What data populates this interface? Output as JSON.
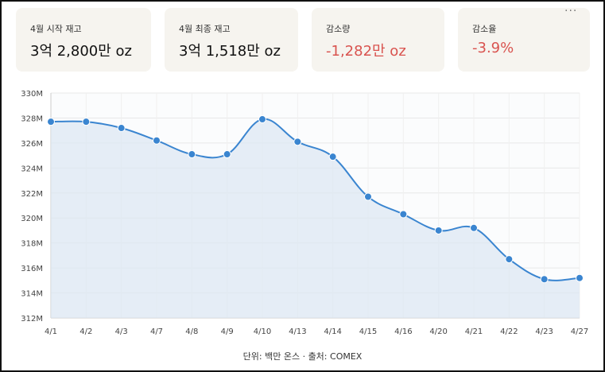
{
  "cards": [
    {
      "label": "4월 시작 재고",
      "value": "3억 2,800만 oz",
      "negative": false
    },
    {
      "label": "4월 최종 재고",
      "value": "3억 1,518만 oz",
      "negative": false
    },
    {
      "label": "감소량",
      "value": "-1,282만 oz",
      "negative": true
    },
    {
      "label": "감소율",
      "value": "-3.9%",
      "negative": true
    }
  ],
  "more_label": "···",
  "footer": "단위: 백만 온스 · 출처: COMEX",
  "colors": {
    "line": "#3a85d0",
    "fill": "#dbe7f2",
    "negative": "#d9534f",
    "card_bg": "#f6f4ef"
  },
  "chart_data": {
    "type": "area",
    "categories": [
      "4/1",
      "4/2",
      "4/3",
      "4/7",
      "4/8",
      "4/9",
      "4/10",
      "4/13",
      "4/14",
      "4/15",
      "4/16",
      "4/20",
      "4/21",
      "4/22",
      "4/23",
      "4/27"
    ],
    "series": [
      {
        "values": [
          327.7,
          327.7,
          327.2,
          326.2,
          325.1,
          325.1,
          327.9,
          326.1,
          324.9,
          321.7,
          320.3,
          319.0,
          319.2,
          316.7,
          315.1,
          315.2
        ]
      }
    ],
    "ylim": [
      312,
      330
    ],
    "yticks": [
      "312M",
      "314M",
      "316M",
      "318M",
      "320M",
      "322M",
      "324M",
      "326M",
      "328M",
      "330M"
    ],
    "grid": true,
    "legend": "none"
  }
}
